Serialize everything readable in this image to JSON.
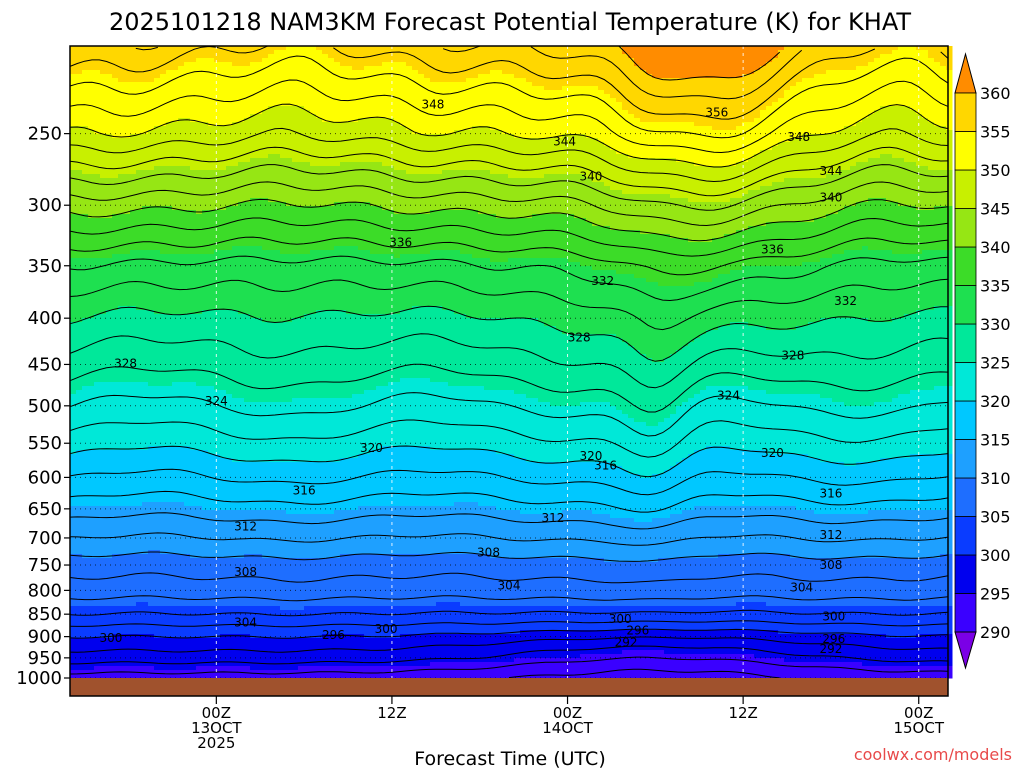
{
  "chart_data": {
    "type": "heatmap",
    "title": "2025101218 NAM3KM Forecast Potential Temperature (K) for KHAT",
    "xlabel": "Forecast Time (UTC)",
    "ylabel": "",
    "credit": "coolwx.com/models",
    "x_range_hours": [
      -10,
      50
    ],
    "y_range_hpa": [
      1000,
      200
    ],
    "y_scale": "log-pressure",
    "grid": true,
    "legend": "colorbar-right",
    "y_ticks": [
      "250",
      "300",
      "350",
      "400",
      "450",
      "500",
      "550",
      "600",
      "650",
      "700",
      "750",
      "800",
      "850",
      "900",
      "950",
      "1000"
    ],
    "x_ticks": [
      {
        "hour": 0,
        "lines": [
          "00Z",
          "13OCT",
          "2025"
        ]
      },
      {
        "hour": 12,
        "lines": [
          "12Z"
        ]
      },
      {
        "hour": 24,
        "lines": [
          "00Z",
          "14OCT"
        ]
      },
      {
        "hour": 36,
        "lines": [
          "12Z"
        ]
      },
      {
        "hour": 48,
        "lines": [
          "00Z",
          "15OCT"
        ]
      }
    ],
    "colorbar": {
      "levels": [
        290,
        295,
        300,
        305,
        310,
        315,
        320,
        325,
        330,
        335,
        340,
        345,
        350,
        355,
        360
      ],
      "labels": [
        "290",
        "295",
        "300",
        "305",
        "310",
        "315",
        "320",
        "325",
        "330",
        "335",
        "340",
        "345",
        "350",
        "355",
        "360"
      ],
      "colors": [
        "#7b00e6",
        "#3a00ff",
        "#0000ee",
        "#0a3cff",
        "#1e6eff",
        "#1ea0ff",
        "#00c8ff",
        "#00e8d8",
        "#00e89a",
        "#1ee050",
        "#3cdc28",
        "#96e614",
        "#c8f000",
        "#ffff00",
        "#ffd700",
        "#ffa500",
        "#ff8c00"
      ],
      "under_color": "#7b00e6",
      "over_color": "#ff8c00"
    },
    "profile": {
      "pressure_hpa": [
        1000,
        950,
        900,
        850,
        800,
        750,
        700,
        650,
        600,
        550,
        500,
        450,
        400,
        350,
        300,
        250,
        200
      ],
      "theta_k": [
        293,
        297,
        300,
        304,
        307,
        309,
        312,
        315,
        318,
        321,
        324,
        327,
        330,
        334,
        341,
        350,
        358
      ]
    },
    "contour_labels": [
      {
        "hour": -7.2,
        "hpa": 903,
        "text": "300"
      },
      {
        "hour": 2.0,
        "hpa": 868,
        "text": "304"
      },
      {
        "hour": 2.0,
        "hpa": 763,
        "text": "308"
      },
      {
        "hour": 2.0,
        "hpa": 680,
        "text": "312"
      },
      {
        "hour": 6.0,
        "hpa": 620,
        "text": "316"
      },
      {
        "hour": 10.6,
        "hpa": 557,
        "text": "320"
      },
      {
        "hour": 0.0,
        "hpa": 494,
        "text": "324"
      },
      {
        "hour": -6.2,
        "hpa": 449,
        "text": "328"
      },
      {
        "hour": 12.6,
        "hpa": 330,
        "text": "336"
      },
      {
        "hour": 14.8,
        "hpa": 232,
        "text": "348"
      },
      {
        "hour": 8.0,
        "hpa": 896,
        "text": "296"
      },
      {
        "hour": 11.6,
        "hpa": 883,
        "text": "300"
      },
      {
        "hour": 18.6,
        "hpa": 726,
        "text": "308"
      },
      {
        "hour": 20.0,
        "hpa": 790,
        "text": "304"
      },
      {
        "hour": 23.0,
        "hpa": 665,
        "text": "312"
      },
      {
        "hour": 26.4,
        "hpa": 364,
        "text": "332"
      },
      {
        "hour": 24.8,
        "hpa": 420,
        "text": "328"
      },
      {
        "hour": 26.6,
        "hpa": 582,
        "text": "316"
      },
      {
        "hour": 25.6,
        "hpa": 568,
        "text": "320"
      },
      {
        "hour": 25.6,
        "hpa": 279,
        "text": "340"
      },
      {
        "hour": 23.8,
        "hpa": 255,
        "text": "344"
      },
      {
        "hour": 27.6,
        "hpa": 861,
        "text": "300"
      },
      {
        "hour": 28.8,
        "hpa": 886,
        "text": "296"
      },
      {
        "hour": 28.0,
        "hpa": 913,
        "text": "292"
      },
      {
        "hour": 34.2,
        "hpa": 237,
        "text": "356"
      },
      {
        "hour": 39.8,
        "hpa": 252,
        "text": "348"
      },
      {
        "hour": 42.0,
        "hpa": 275,
        "text": "344"
      },
      {
        "hour": 42.0,
        "hpa": 294,
        "text": "340"
      },
      {
        "hour": 38.0,
        "hpa": 336,
        "text": "336"
      },
      {
        "hour": 43.0,
        "hpa": 383,
        "text": "332"
      },
      {
        "hour": 39.4,
        "hpa": 440,
        "text": "328"
      },
      {
        "hour": 35.0,
        "hpa": 487,
        "text": "324"
      },
      {
        "hour": 38.0,
        "hpa": 564,
        "text": "320"
      },
      {
        "hour": 42.0,
        "hpa": 625,
        "text": "316"
      },
      {
        "hour": 42.0,
        "hpa": 695,
        "text": "312"
      },
      {
        "hour": 42.0,
        "hpa": 750,
        "text": "308"
      },
      {
        "hour": 40.0,
        "hpa": 794,
        "text": "304"
      },
      {
        "hour": 42.2,
        "hpa": 855,
        "text": "300"
      },
      {
        "hour": 42.2,
        "hpa": 906,
        "text": "296"
      },
      {
        "hour": 42.0,
        "hpa": 929,
        "text": "292"
      }
    ]
  }
}
